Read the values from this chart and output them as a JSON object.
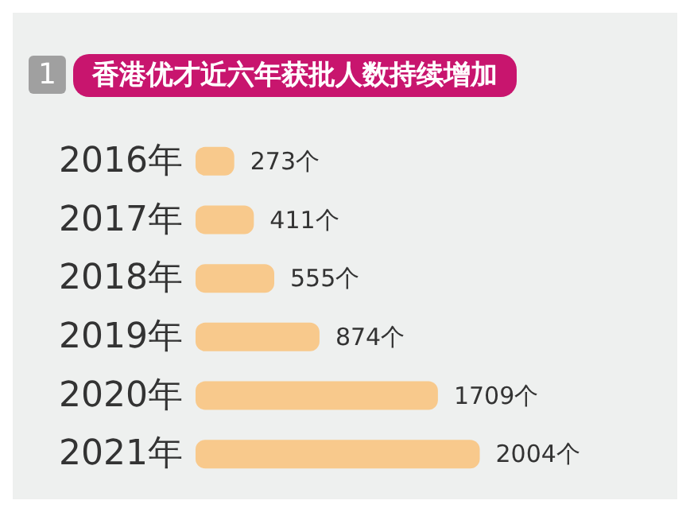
{
  "chart_data": {
    "type": "bar",
    "orientation": "horizontal",
    "title": "香港优才近六年获批人数持续增加",
    "annotations": [
      "1"
    ],
    "categories": [
      "2016年",
      "2017年",
      "2018年",
      "2019年",
      "2020年",
      "2021年"
    ],
    "values": [
      273,
      411,
      555,
      874,
      1709,
      2004
    ],
    "value_labels": [
      "273个",
      "411个",
      "555个",
      "874个",
      "1709个",
      "2004个"
    ],
    "color": "#f8c98c",
    "grid": false
  }
}
